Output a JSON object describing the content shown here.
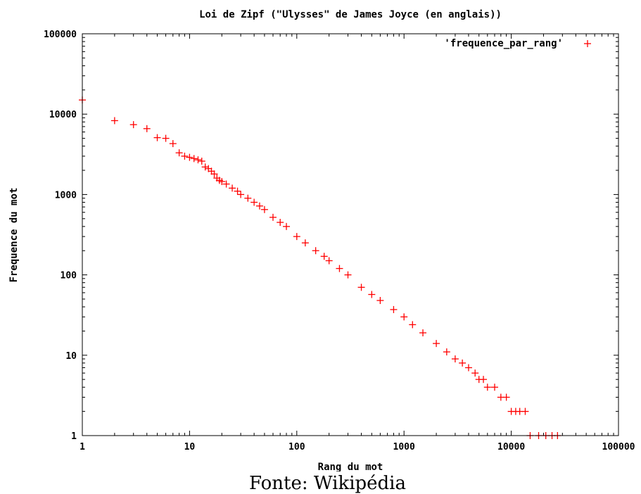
{
  "chart_data": {
    "type": "scatter",
    "title": "Loi de Zipf (\"Ulysses\" de James Joyce (en anglais))",
    "xlabel": "Rang du mot",
    "ylabel": "Frequence du mot",
    "xscale": "log",
    "yscale": "log",
    "xlim": [
      1,
      100000
    ],
    "ylim": [
      1,
      100000
    ],
    "xticks": [
      "1",
      "10",
      "100",
      "1000",
      "10000",
      "100000"
    ],
    "yticks": [
      "1",
      "10",
      "100",
      "1000",
      "10000",
      "100000"
    ],
    "legend_position": "top-right",
    "marker": "+",
    "color": "#ff0000",
    "series": [
      {
        "name": "'frequence_par_rang'",
        "x": [
          1,
          2,
          3,
          4,
          5,
          6,
          7,
          8,
          9,
          10,
          11,
          12,
          13,
          14,
          15,
          16,
          17,
          18,
          19,
          20,
          22,
          25,
          28,
          30,
          35,
          40,
          45,
          50,
          60,
          70,
          80,
          100,
          120,
          150,
          180,
          200,
          250,
          300,
          400,
          500,
          600,
          800,
          1000,
          1200,
          1500,
          2000,
          2500,
          3000,
          3500,
          4000,
          4600,
          5000,
          5500,
          6000,
          7000,
          8000,
          9000,
          10000,
          11000,
          12000,
          13500,
          15000,
          18000,
          21000,
          24000,
          27000
        ],
        "y": [
          15000,
          8300,
          7400,
          6600,
          5100,
          5000,
          4300,
          3300,
          3000,
          2900,
          2800,
          2700,
          2600,
          2200,
          2100,
          1950,
          1800,
          1600,
          1500,
          1450,
          1350,
          1200,
          1100,
          1000,
          900,
          800,
          720,
          650,
          520,
          450,
          400,
          300,
          250,
          200,
          170,
          150,
          120,
          100,
          70,
          57,
          48,
          37,
          30,
          24,
          19,
          14,
          11,
          9,
          8,
          7,
          6,
          5,
          5,
          4,
          4,
          3,
          3,
          2,
          2,
          2,
          2,
          1,
          1,
          1,
          1,
          1
        ]
      }
    ]
  },
  "source_note": "Fonte: Wikipédia"
}
